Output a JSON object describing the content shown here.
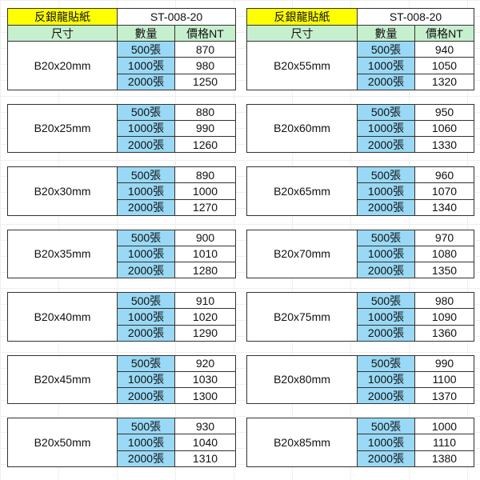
{
  "colors": {
    "title_bg": "#ffff00",
    "header_bg": "#c6efce",
    "qty_bg": "#99d9f5"
  },
  "tables": [
    {
      "title": "反銀龍貼紙",
      "code": "ST-008-20",
      "headers": [
        "尺寸",
        "數量",
        "價格NT"
      ],
      "groups": [
        {
          "size": "B20x20mm",
          "rows": [
            {
              "qty": "500張",
              "price": "870"
            },
            {
              "qty": "1000張",
              "price": "980"
            },
            {
              "qty": "2000張",
              "price": "1250"
            }
          ]
        },
        {
          "size": "B20x25mm",
          "rows": [
            {
              "qty": "500張",
              "price": "880"
            },
            {
              "qty": "1000張",
              "price": "990"
            },
            {
              "qty": "2000張",
              "price": "1260"
            }
          ]
        },
        {
          "size": "B20x30mm",
          "rows": [
            {
              "qty": "500張",
              "price": "890"
            },
            {
              "qty": "1000張",
              "price": "1000"
            },
            {
              "qty": "2000張",
              "price": "1270"
            }
          ]
        },
        {
          "size": "B20x35mm",
          "rows": [
            {
              "qty": "500張",
              "price": "900"
            },
            {
              "qty": "1000張",
              "price": "1010"
            },
            {
              "qty": "2000張",
              "price": "1280"
            }
          ]
        },
        {
          "size": "B20x40mm",
          "rows": [
            {
              "qty": "500張",
              "price": "910"
            },
            {
              "qty": "1000張",
              "price": "1020"
            },
            {
              "qty": "2000張",
              "price": "1290"
            }
          ]
        },
        {
          "size": "B20x45mm",
          "rows": [
            {
              "qty": "500張",
              "price": "920"
            },
            {
              "qty": "1000張",
              "price": "1030"
            },
            {
              "qty": "2000張",
              "price": "1300"
            }
          ]
        },
        {
          "size": "B20x50mm",
          "rows": [
            {
              "qty": "500張",
              "price": "930"
            },
            {
              "qty": "1000張",
              "price": "1040"
            },
            {
              "qty": "2000張",
              "price": "1310"
            }
          ]
        }
      ]
    },
    {
      "title": "反銀龍貼紙",
      "code": "ST-008-20",
      "headers": [
        "尺寸",
        "數量",
        "價格NT"
      ],
      "groups": [
        {
          "size": "B20x55mm",
          "rows": [
            {
              "qty": "500張",
              "price": "940"
            },
            {
              "qty": "1000張",
              "price": "1050"
            },
            {
              "qty": "2000張",
              "price": "1320"
            }
          ]
        },
        {
          "size": "B20x60mm",
          "rows": [
            {
              "qty": "500張",
              "price": "950"
            },
            {
              "qty": "1000張",
              "price": "1060"
            },
            {
              "qty": "2000張",
              "price": "1330"
            }
          ]
        },
        {
          "size": "B20x65mm",
          "rows": [
            {
              "qty": "500張",
              "price": "960"
            },
            {
              "qty": "1000張",
              "price": "1070"
            },
            {
              "qty": "2000張",
              "price": "1340"
            }
          ]
        },
        {
          "size": "B20x70mm",
          "rows": [
            {
              "qty": "500張",
              "price": "970"
            },
            {
              "qty": "1000張",
              "price": "1080"
            },
            {
              "qty": "2000張",
              "price": "1350"
            }
          ]
        },
        {
          "size": "B20x75mm",
          "rows": [
            {
              "qty": "500張",
              "price": "980"
            },
            {
              "qty": "1000張",
              "price": "1090"
            },
            {
              "qty": "2000張",
              "price": "1360"
            }
          ]
        },
        {
          "size": "B20x80mm",
          "rows": [
            {
              "qty": "500張",
              "price": "990"
            },
            {
              "qty": "1000張",
              "price": "1100"
            },
            {
              "qty": "2000張",
              "price": "1370"
            }
          ]
        },
        {
          "size": "B20x85mm",
          "rows": [
            {
              "qty": "500張",
              "price": "1000"
            },
            {
              "qty": "1000張",
              "price": "1110"
            },
            {
              "qty": "2000張",
              "price": "1380"
            }
          ]
        }
      ]
    }
  ]
}
